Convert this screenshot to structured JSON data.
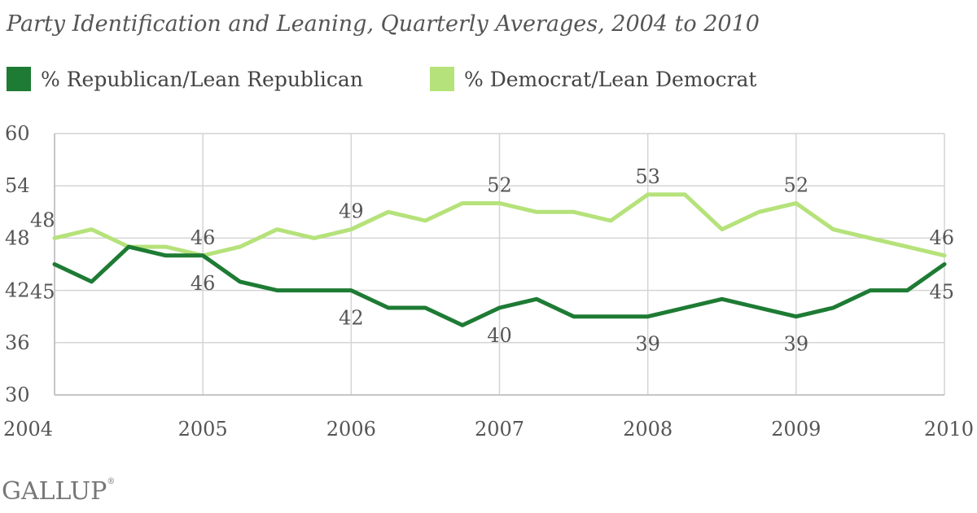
{
  "chart_data": {
    "type": "line",
    "title": "Party Identification and Leaning, Quarterly Averages, 2004 to 2010",
    "xlabel": "",
    "ylabel": "",
    "ylim": [
      30,
      60
    ],
    "yticks": [
      "60",
      "54",
      "48",
      "42",
      "36",
      "30"
    ],
    "xticks": [
      "2004",
      "2005",
      "2006",
      "2007",
      "2008",
      "2009",
      "2010"
    ],
    "x": [
      2004,
      2004.25,
      2004.5,
      2004.75,
      2005,
      2005.25,
      2005.5,
      2005.75,
      2006,
      2006.25,
      2006.5,
      2006.75,
      2007,
      2007.25,
      2007.5,
      2007.75,
      2008,
      2008.25,
      2008.5,
      2008.75,
      2009,
      2009.25,
      2009.5,
      2009.75,
      2010
    ],
    "grid": true,
    "legend_position": "top-left",
    "series": [
      {
        "name": "% Republican/Lean Republican",
        "color": "#1e7b34",
        "values": [
          45,
          43,
          47,
          46,
          46,
          43,
          42,
          42,
          42,
          40,
          40,
          38,
          40,
          41,
          39,
          39,
          39,
          40,
          41,
          40,
          39,
          40,
          42,
          42,
          45
        ],
        "data_labels": [
          {
            "x": 2004,
            "label": "45",
            "pos": "below"
          },
          {
            "x": 2005,
            "label": "46",
            "pos": "below"
          },
          {
            "x": 2006,
            "label": "42",
            "pos": "below"
          },
          {
            "x": 2007,
            "label": "40",
            "pos": "below"
          },
          {
            "x": 2008,
            "label": "39",
            "pos": "below"
          },
          {
            "x": 2009,
            "label": "39",
            "pos": "below"
          },
          {
            "x": 2010,
            "label": "45",
            "pos": "below"
          }
        ]
      },
      {
        "name": "% Democrat/Lean Democrat",
        "color": "#b5e27a",
        "values": [
          48,
          49,
          47,
          47,
          46,
          47,
          49,
          48,
          49,
          51,
          50,
          52,
          52,
          51,
          51,
          50,
          53,
          53,
          49,
          51,
          52,
          49,
          48,
          47,
          46
        ],
        "data_labels": [
          {
            "x": 2004,
            "label": "48",
            "pos": "above"
          },
          {
            "x": 2005,
            "label": "46",
            "pos": "above"
          },
          {
            "x": 2006,
            "label": "49",
            "pos": "above"
          },
          {
            "x": 2007,
            "label": "52",
            "pos": "above"
          },
          {
            "x": 2008,
            "label": "53",
            "pos": "above"
          },
          {
            "x": 2009,
            "label": "52",
            "pos": "above"
          },
          {
            "x": 2010,
            "label": "46",
            "pos": "above"
          }
        ]
      }
    ]
  },
  "brand": {
    "logo_text": "GALLUP",
    "logo_mark": "®"
  }
}
